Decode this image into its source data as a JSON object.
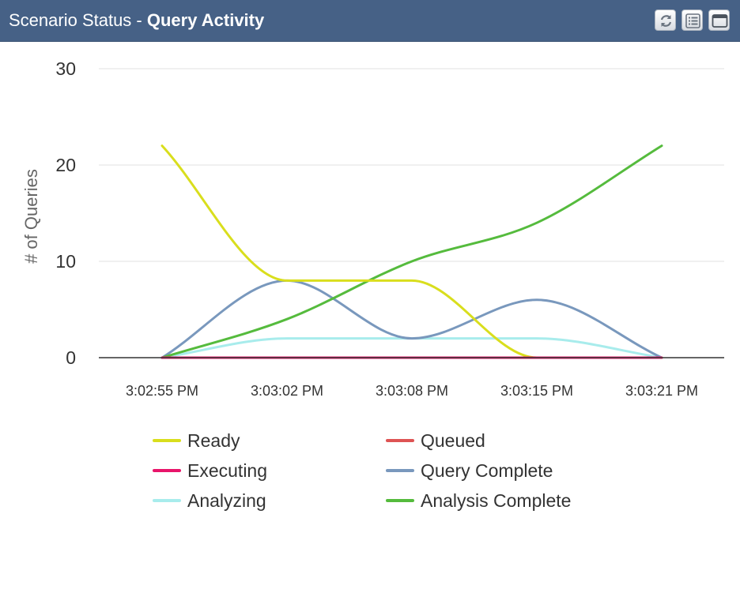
{
  "header": {
    "title_prefix": "Scenario Status - ",
    "title_strong": "Query Activity",
    "buttons": [
      {
        "name": "refresh-button",
        "icon": "refresh-icon"
      },
      {
        "name": "list-view-button",
        "icon": "list-icon"
      },
      {
        "name": "maximize-button",
        "icon": "maximize-icon"
      }
    ]
  },
  "chart_data": {
    "type": "line",
    "title": "",
    "xlabel": "",
    "ylabel": "# of Queries",
    "ylim": [
      0,
      30
    ],
    "yticks": [
      0,
      10,
      20,
      30
    ],
    "categories": [
      "3:02:55 PM",
      "3:03:02 PM",
      "3:03:08 PM",
      "3:03:15 PM",
      "3:03:21 PM"
    ],
    "grid": true,
    "legend_position": "bottom",
    "series": [
      {
        "name": "Ready",
        "color": "#d9de1d",
        "values": [
          22,
          8,
          8,
          0,
          0
        ]
      },
      {
        "name": "Queued",
        "color": "#de5454",
        "values": [
          0,
          0,
          0,
          0,
          0
        ]
      },
      {
        "name": "Executing",
        "color": "#e8156a",
        "values": [
          0,
          0,
          0,
          0,
          0
        ]
      },
      {
        "name": "Query Complete",
        "color": "#7998bd",
        "values": [
          0,
          8,
          2,
          6,
          0
        ]
      },
      {
        "name": "Analyzing",
        "color": "#a8ecec",
        "values": [
          0,
          2,
          2,
          2,
          0
        ]
      },
      {
        "name": "Analysis Complete",
        "color": "#55bb3d",
        "values": [
          0,
          4,
          10,
          14,
          22
        ]
      }
    ]
  }
}
